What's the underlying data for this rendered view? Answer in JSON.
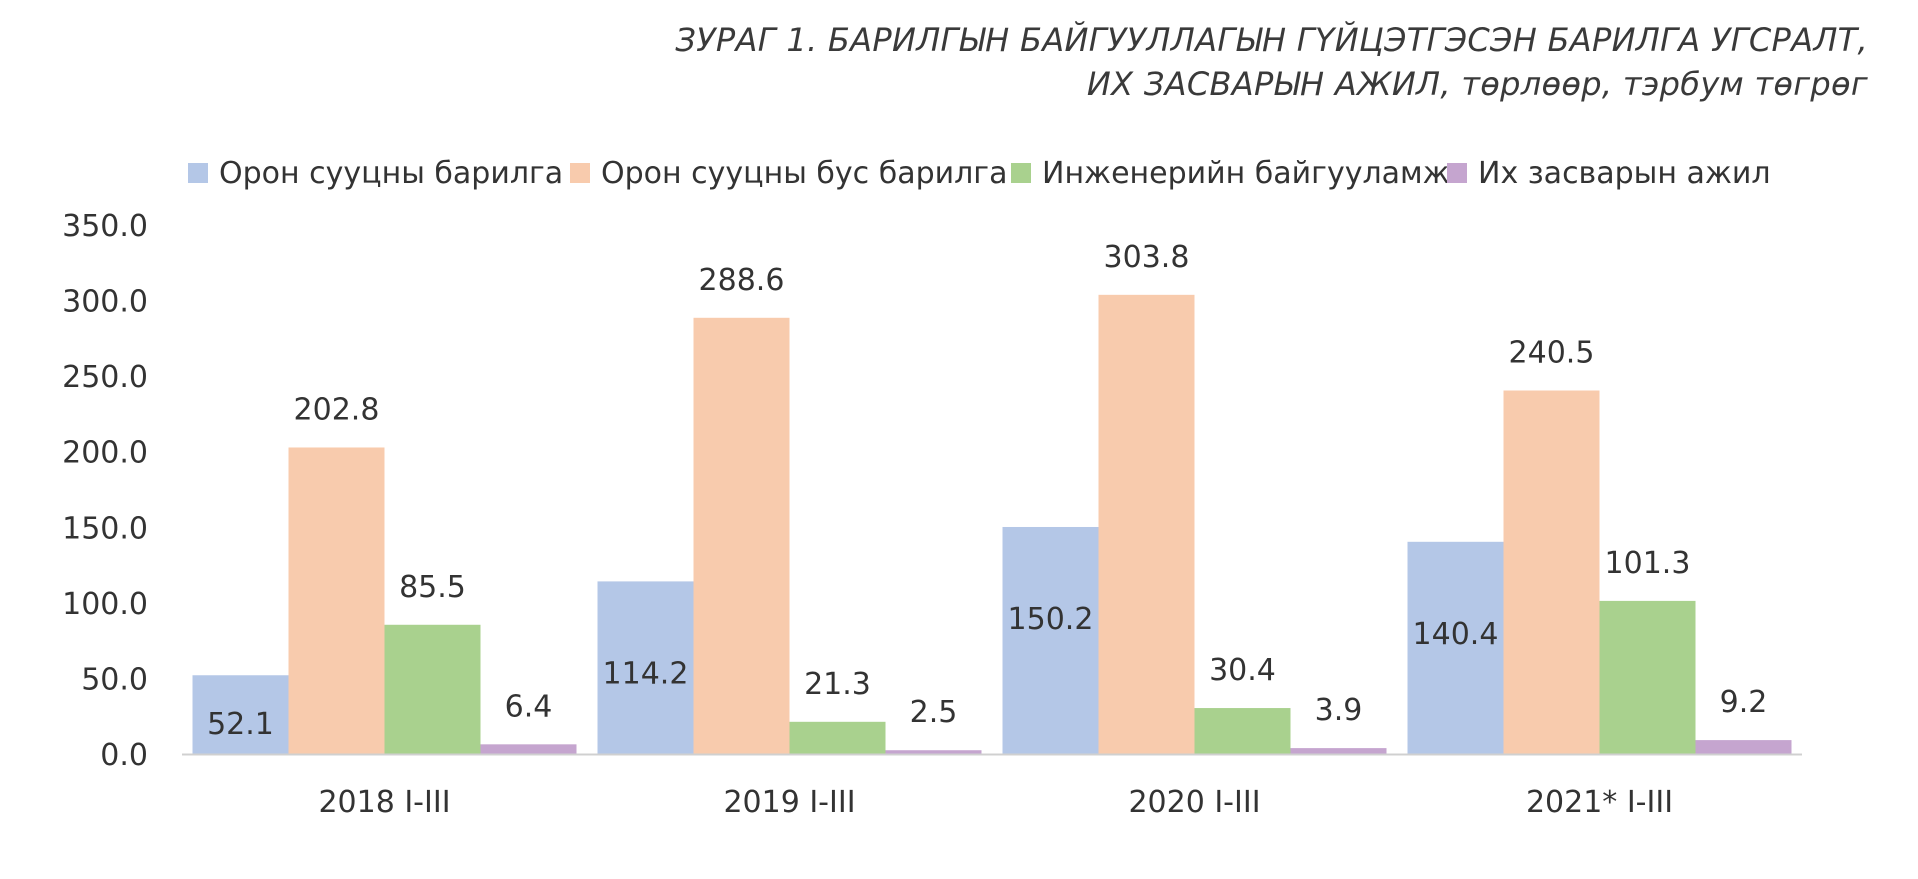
{
  "chart_data": {
    "type": "bar",
    "title_line1": "ЗУРАГ 1. БАРИЛГЫН БАЙГУУЛЛАГЫН ГҮЙЦЭТГЭСЭН БАРИЛГА УГСРАЛТ,",
    "title_line2": "ИХ ЗАСВАРЫН АЖИЛ, төрлөөр, тэрбум төгрөг",
    "xlabel": "",
    "ylabel": "",
    "categories": [
      "2018 I-III",
      "2019 I-III",
      "2020 I-III",
      "2021* I-III"
    ],
    "ylim": [
      0,
      350
    ],
    "yticks": [
      "0.0",
      "50.0",
      "100.0",
      "150.0",
      "200.0",
      "250.0",
      "300.0",
      "350.0"
    ],
    "yticks_values": [
      0,
      50,
      100,
      150,
      200,
      250,
      300,
      350
    ],
    "grid": false,
    "legend_position": "top",
    "series": [
      {
        "name": "Орон сууцны барилга",
        "color": "#b4c7e7",
        "values": [
          52.1,
          114.2,
          150.2,
          140.4
        ],
        "labels": [
          "52.1",
          "114.2",
          "150.2",
          "140.4"
        ]
      },
      {
        "name": "Орон сууцны бус барилга",
        "color": "#f8cbad",
        "values": [
          202.8,
          288.6,
          303.8,
          240.5
        ],
        "labels": [
          "202.8",
          "288.6",
          "303.8",
          "240.5"
        ]
      },
      {
        "name": "Инженерийн байгууламж",
        "color": "#a9d18e",
        "values": [
          85.5,
          21.3,
          30.4,
          101.3
        ],
        "labels": [
          "85.5",
          "21.3",
          "30.4",
          "101.3"
        ]
      },
      {
        "name": "Их засварын ажил",
        "color": "#c5a5cf",
        "values": [
          6.4,
          2.5,
          3.9,
          9.2
        ],
        "labels": [
          "6.4",
          "2.5",
          "3.9",
          "9.2"
        ]
      }
    ]
  }
}
